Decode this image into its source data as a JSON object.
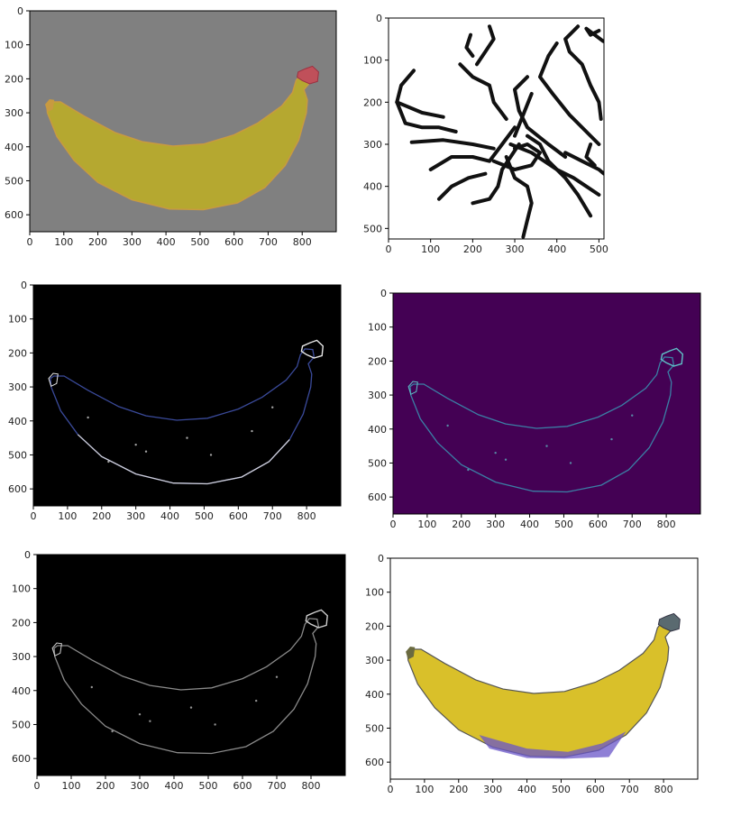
{
  "chart_data": [
    {
      "type": "image",
      "panel": "rgb-original",
      "xticks": [
        0,
        100,
        200,
        300,
        400,
        500,
        600,
        700,
        800
      ],
      "yticks": [
        0,
        100,
        200,
        300,
        400,
        500,
        600
      ],
      "xlim": [
        0,
        900
      ],
      "ylim": [
        650,
        0
      ],
      "background_color": "#808080",
      "fill_color": "#b5a830",
      "edge_color": "#c89a40",
      "stem_color": "#c0505a"
    },
    {
      "type": "image",
      "panel": "binary-lines",
      "xticks": [
        0,
        100,
        200,
        300,
        400,
        500
      ],
      "yticks": [
        0,
        100,
        200,
        300,
        400,
        500
      ],
      "xlim": [
        0,
        512
      ],
      "ylim": [
        525,
        0
      ],
      "background_color": "#ffffff",
      "line_color": "#111111"
    },
    {
      "type": "image",
      "panel": "rgb-edges",
      "xticks": [
        0,
        100,
        200,
        300,
        400,
        500,
        600,
        700,
        800
      ],
      "yticks": [
        0,
        100,
        200,
        300,
        400,
        500,
        600
      ],
      "xlim": [
        0,
        900
      ],
      "ylim": [
        650,
        0
      ],
      "background_color": "#000000",
      "edge_color": "#3a4a9a",
      "bottom_edge_color": "#cfcfd8",
      "stem_color": "#e8e8e8"
    },
    {
      "type": "image",
      "panel": "viridis-edges",
      "xticks": [
        0,
        100,
        200,
        300,
        400,
        500,
        600,
        700,
        800
      ],
      "yticks": [
        0,
        100,
        200,
        300,
        400,
        500,
        600
      ],
      "xlim": [
        0,
        900
      ],
      "ylim": [
        650,
        0
      ],
      "background_color": "#440154",
      "edge_color": "#3b7fa5",
      "stem_color": "#5fc3c8"
    },
    {
      "type": "image",
      "panel": "gray-edges",
      "xticks": [
        0,
        100,
        200,
        300,
        400,
        500,
        600,
        700,
        800
      ],
      "yticks": [
        0,
        100,
        200,
        300,
        400,
        500,
        600
      ],
      "xlim": [
        0,
        900
      ],
      "ylim": [
        650,
        0
      ],
      "background_color": "#000000",
      "edge_color": "#8a8a8a",
      "stem_color": "#d0d0d0"
    },
    {
      "type": "image",
      "panel": "enhanced-rgb",
      "xticks": [
        0,
        100,
        200,
        300,
        400,
        500,
        600,
        700,
        800
      ],
      "yticks": [
        0,
        100,
        200,
        300,
        400,
        500,
        600
      ],
      "xlim": [
        0,
        900
      ],
      "ylim": [
        650,
        0
      ],
      "background_color": "#ffffff",
      "fill_color": "#d9c02a",
      "shade_color": "#6a55c8",
      "edge_color": "#555555",
      "stem_color": "#5a6a70"
    }
  ]
}
